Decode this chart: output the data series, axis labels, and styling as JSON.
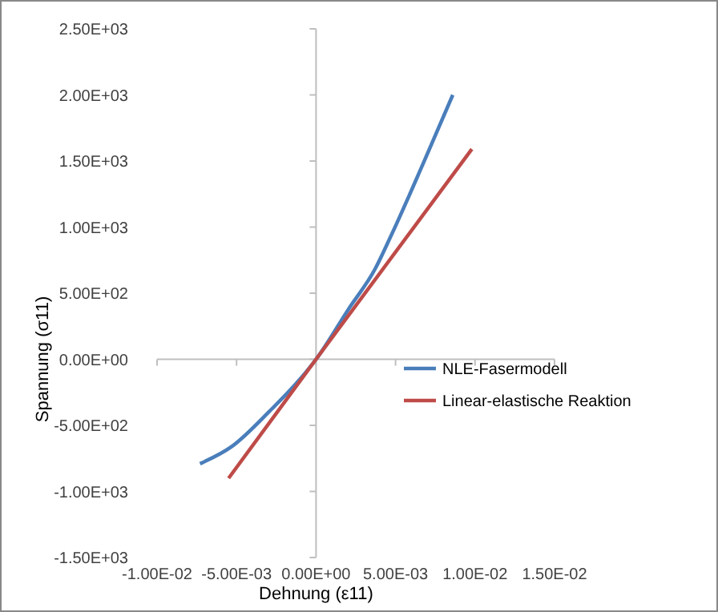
{
  "chart_data": {
    "type": "line",
    "xlabel": "Dehnung (ε11)",
    "ylabel": "Spannung (σ11)",
    "xlim": [
      -0.01,
      0.015
    ],
    "ylim": [
      -1500,
      2500
    ],
    "xticks": [
      {
        "value": -0.01,
        "label": "-1.00E-02"
      },
      {
        "value": -0.005,
        "label": "-5.00E-03"
      },
      {
        "value": 0,
        "label": "0.00E+00"
      },
      {
        "value": 0.005,
        "label": "5.00E-03"
      },
      {
        "value": 0.01,
        "label": "1.00E-02"
      },
      {
        "value": 0.015,
        "label": "1.50E-02"
      }
    ],
    "yticks": [
      {
        "value": -1500,
        "label": "-1.50E+03"
      },
      {
        "value": -1000,
        "label": "-1.00E+03"
      },
      {
        "value": -500,
        "label": "-5.00E+02"
      },
      {
        "value": 0,
        "label": "0.00E+00"
      },
      {
        "value": 500,
        "label": "5.00E+02"
      },
      {
        "value": 1000,
        "label": "1.00E+03"
      },
      {
        "value": 1500,
        "label": "1.50E+03"
      },
      {
        "value": 2000,
        "label": "2.00E+03"
      },
      {
        "value": 2500,
        "label": "2.50E+03"
      }
    ],
    "legend": "right",
    "marker": "none",
    "line_style": "solid",
    "series": [
      {
        "name": "NLE-Fasermodell",
        "color": "#4a7ebb",
        "x": [
          -0.0073,
          -0.0053,
          -0.0029,
          -0.0013,
          0,
          0.0021,
          0.0037,
          0.0047,
          0.0067,
          0.0086
        ],
        "values": [
          -790,
          -660,
          -390,
          -190,
          0,
          390,
          680,
          930,
          1470,
          2000
        ]
      },
      {
        "name": "Linear-elastische Reaktion",
        "color": "#be4b48",
        "x": [
          -0.0055,
          0,
          0.0098
        ],
        "values": [
          -900,
          0,
          1590
        ]
      }
    ]
  }
}
